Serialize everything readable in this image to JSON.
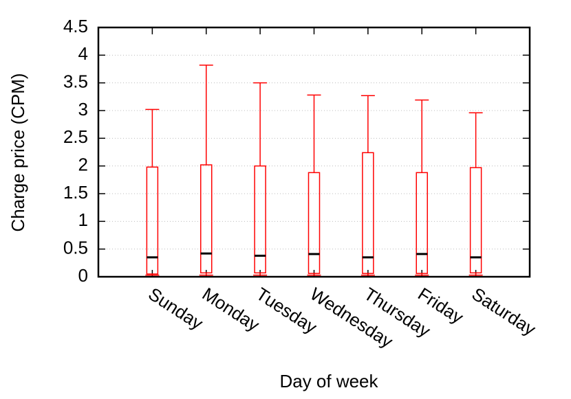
{
  "chart_data": {
    "type": "box",
    "x_label": "Day of week",
    "y_label": "Charge price (CPM)",
    "categories": [
      "Sunday",
      "Monday",
      "Tuesday",
      "Wednesday",
      "Thursday",
      "Friday",
      "Saturday"
    ],
    "series": [
      {
        "color": "#ff0000",
        "median_color": "#000000",
        "min": [
          0.03,
          0.03,
          0.03,
          0.03,
          0.03,
          0.03,
          0.03
        ],
        "q1": [
          0.05,
          0.07,
          0.07,
          0.06,
          0.06,
          0.06,
          0.07
        ],
        "median": [
          0.35,
          0.42,
          0.38,
          0.41,
          0.35,
          0.41,
          0.35
        ],
        "q3": [
          1.98,
          2.02,
          2.0,
          1.88,
          2.24,
          1.88,
          1.97
        ],
        "max": [
          3.02,
          3.82,
          3.5,
          3.28,
          3.27,
          3.19,
          2.96
        ]
      }
    ],
    "ylim": [
      0,
      4.5
    ],
    "yticks": [
      0,
      0.5,
      1,
      1.5,
      2,
      2.5,
      3,
      3.5,
      4,
      4.5
    ],
    "grid": true
  }
}
